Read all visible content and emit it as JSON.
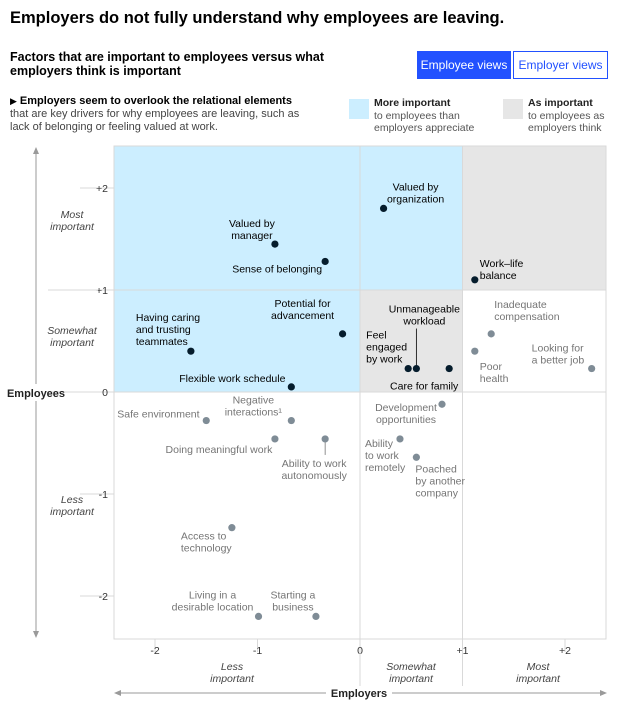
{
  "header": {
    "title": "Employers do not fully understand why employees are leaving.",
    "subtitle": "Factors that are important to employees versus what employers think is important"
  },
  "toggle": {
    "employee_label": "Employee views",
    "employer_label": "Employer views",
    "active": "Employee views"
  },
  "note": {
    "lead": "Employers seem to overlook the relational elements",
    "text": "that are key drivers for why employees are leaving, such as lack of belonging or feeling valued at work."
  },
  "legend": [
    {
      "title": "More important",
      "text": "to employees than employers appreciate",
      "color": "#cceeff"
    },
    {
      "title": "As important",
      "text": "to employees as employers think",
      "color": "#e6e6e6"
    }
  ],
  "colors": {
    "more_important": "#cceeff",
    "as_important": "#e6e6e6",
    "highlight_point": "#051c2c",
    "other_point": "#7f8c96",
    "highlight_text": "#000000",
    "other_text": "#757575",
    "axis": "#9a9a9a",
    "grid": "#d9d9d9"
  },
  "chart_data": {
    "type": "scatter",
    "xlabel": "Employers",
    "ylabel": "Employees",
    "xlim": [
      -2.4,
      2.4
    ],
    "ylim": [
      -2.4,
      2.4
    ],
    "x_ticks": [
      "-2",
      "-1",
      "0",
      "+1",
      "+2"
    ],
    "y_ticks": [
      "+2",
      "+1",
      "0",
      "-1",
      "-2"
    ],
    "x_band_labels": [
      "Less important",
      "Somewhat important",
      "Most important"
    ],
    "y_band_labels": [
      "Most important",
      "Somewhat important",
      "Less important"
    ],
    "points": [
      {
        "label": "Valued by organization",
        "x": 0.23,
        "y": 1.8,
        "highlight": true
      },
      {
        "label": "Valued by manager",
        "x": -0.83,
        "y": 1.45,
        "highlight": true
      },
      {
        "label": "Sense of belonging",
        "x": -0.34,
        "y": 1.28,
        "highlight": true
      },
      {
        "label": "Work–life balance",
        "x": 1.12,
        "y": 1.1,
        "highlight": true
      },
      {
        "label": "Having caring and trusting teammates",
        "x": -1.65,
        "y": 0.4,
        "highlight": true
      },
      {
        "label": "Potential for advancement",
        "x": -0.17,
        "y": 0.57,
        "highlight": true
      },
      {
        "label": "Flexible work schedule",
        "x": -0.67,
        "y": 0.05,
        "highlight": true
      },
      {
        "label": "Unmanageable workload",
        "x": 0.55,
        "y": 0.23,
        "highlight": true
      },
      {
        "label": "Feel engaged by work",
        "x": 0.47,
        "y": 0.23,
        "highlight": true
      },
      {
        "label": "Care for family",
        "x": 0.87,
        "y": 0.23,
        "highlight": true
      },
      {
        "label": "Inadequate compensation",
        "x": 1.28,
        "y": 0.57,
        "highlight": false
      },
      {
        "label": "Poor health",
        "x": 1.12,
        "y": 0.4,
        "highlight": false
      },
      {
        "label": "Looking for a better job",
        "x": 2.26,
        "y": 0.23,
        "highlight": false
      },
      {
        "label": "Safe environment",
        "x": -1.5,
        "y": -0.28,
        "highlight": false
      },
      {
        "label": "Negative interactions¹",
        "x": -0.67,
        "y": -0.28,
        "highlight": false
      },
      {
        "label": "Doing meaningful work",
        "x": -0.83,
        "y": -0.46,
        "highlight": false
      },
      {
        "label": "Ability to work autonomously",
        "x": -0.34,
        "y": -0.46,
        "highlight": false
      },
      {
        "label": "Development opportunities",
        "x": 0.8,
        "y": -0.12,
        "highlight": false
      },
      {
        "label": "Ability to work remotely",
        "x": 0.39,
        "y": -0.46,
        "highlight": false
      },
      {
        "label": "Poached by another company",
        "x": 0.55,
        "y": -0.64,
        "highlight": false
      },
      {
        "label": "Access to technology",
        "x": -1.25,
        "y": -1.33,
        "highlight": false
      },
      {
        "label": "Living in a desirable location",
        "x": -0.99,
        "y": -2.2,
        "highlight": false
      },
      {
        "label": "Starting a business",
        "x": -0.43,
        "y": -2.2,
        "highlight": false
      }
    ]
  }
}
